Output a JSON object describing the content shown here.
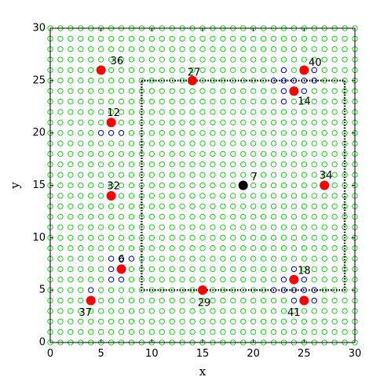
{
  "chart_data": {
    "type": "scatter",
    "title": "",
    "xlabel": "x",
    "ylabel": "y",
    "xlim": [
      0,
      30
    ],
    "ylim": [
      0,
      30
    ],
    "x_ticks": [
      "0",
      "5",
      "10",
      "15",
      "20",
      "25",
      "30"
    ],
    "y_ticks": [
      "0",
      "5",
      "10",
      "15",
      "20",
      "25",
      "30"
    ],
    "grid": false,
    "legend": "none",
    "background_grid": {
      "marker": "open-circle",
      "color": "#00cc00",
      "x_range": [
        0,
        30
      ],
      "y_range": [
        0,
        30
      ],
      "step": 1
    },
    "dotted_box": {
      "x_range": [
        9,
        29
      ],
      "y_range": [
        5,
        25
      ],
      "color": "#000000"
    },
    "blue_markers": [
      [
        23,
        26
      ],
      [
        25,
        26
      ],
      [
        26,
        26
      ],
      [
        22,
        25
      ],
      [
        23,
        25
      ],
      [
        24,
        25
      ],
      [
        25,
        25
      ],
      [
        26,
        25
      ],
      [
        23,
        24
      ],
      [
        25,
        24
      ],
      [
        23,
        23
      ],
      [
        5,
        20
      ],
      [
        6,
        20
      ],
      [
        7,
        20
      ],
      [
        6,
        8
      ],
      [
        7,
        8
      ],
      [
        8,
        8
      ],
      [
        6,
        7
      ],
      [
        6,
        6
      ],
      [
        7,
        6
      ],
      [
        24,
        7
      ],
      [
        23,
        6
      ],
      [
        25,
        6
      ],
      [
        22,
        5
      ],
      [
        23,
        5
      ],
      [
        24,
        5
      ],
      [
        25,
        5
      ],
      [
        26,
        5
      ],
      [
        24,
        4
      ],
      [
        26,
        4
      ],
      [
        4,
        5
      ]
    ],
    "points": [
      {
        "label": "36",
        "x": 5,
        "y": 26,
        "color": "#ff0000"
      },
      {
        "label": "27",
        "x": 14,
        "y": 25,
        "color": "#ff0000"
      },
      {
        "label": "40",
        "x": 25,
        "y": 26,
        "color": "#ff0000"
      },
      {
        "label": "14",
        "x": 24,
        "y": 24,
        "color": "#ff0000"
      },
      {
        "label": "12",
        "x": 6,
        "y": 21,
        "color": "#ff0000"
      },
      {
        "label": "7",
        "x": 19,
        "y": 15,
        "color": "#000000"
      },
      {
        "label": "34",
        "x": 27,
        "y": 15,
        "color": "#ff0000"
      },
      {
        "label": "32",
        "x": 6,
        "y": 14,
        "color": "#ff0000"
      },
      {
        "label": "6",
        "x": 7,
        "y": 7,
        "color": "#ff0000"
      },
      {
        "label": "18",
        "x": 24,
        "y": 6,
        "color": "#ff0000"
      },
      {
        "label": "29",
        "x": 15,
        "y": 5,
        "color": "#ff0000"
      },
      {
        "label": "37",
        "x": 4,
        "y": 4,
        "color": "#ff0000"
      },
      {
        "label": "41",
        "x": 25,
        "y": 4,
        "color": "#ff0000"
      }
    ]
  }
}
